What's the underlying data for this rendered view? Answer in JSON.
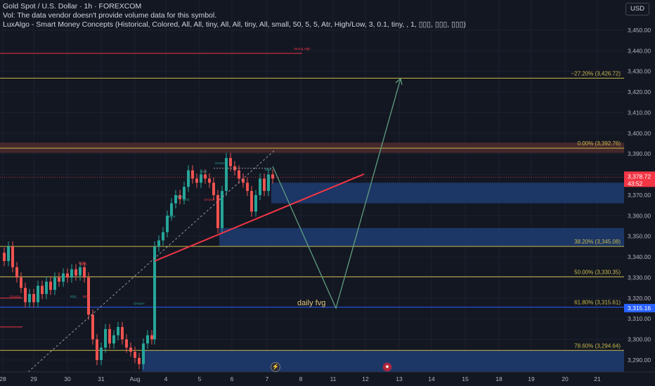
{
  "header": {
    "symbol_line": "Gold Spot / U.S. Dollar · 1h · FOREXCOM",
    "vol_line": "Vol: The data vendor doesn't provide volume data for this symbol.",
    "indicator_line": "LuxAlgo - Smart Money Concepts (Historical, Colored, All, All, tiny, All, All, tiny, All, small, 50, 5, 5, Atr, High/Low, 3, 0.1, tiny, , 1, ▯▯▯, ▯▯▯, ▯▯▯)"
  },
  "currency_button": "USD",
  "price_axis": {
    "ticks": [
      "3,450.00",
      "3,440.00",
      "3,430.00",
      "3,420.00",
      "3,410.00",
      "3,400.00",
      "3,390.00",
      "3,380.00",
      "3,370.00",
      "3,360.00",
      "3,350.00",
      "3,340.00",
      "3,330.00",
      "3,320.00",
      "3,310.00",
      "3,300.00",
      "3,290.00"
    ],
    "current_price": "3,378.72",
    "countdown": "43:52",
    "current_price_color": "#f23645",
    "marked_price": "3,315.16",
    "marked_price_color": "#2962ff"
  },
  "time_axis": {
    "labels": [
      "28",
      "29",
      "30",
      "31",
      "Aug",
      "4",
      "5",
      "6",
      "7",
      "8",
      "11",
      "12",
      "13",
      "14",
      "15",
      "18",
      "19",
      "20",
      "21"
    ]
  },
  "fib_levels": [
    {
      "label": "−27.20% (3,426.72)"
    },
    {
      "label": "0.00% (3,392.76)"
    },
    {
      "label": "38.20% (3,345.08)"
    },
    {
      "label": "50.00% (3,330.35)"
    },
    {
      "label": "61.80% (3,315.61)"
    },
    {
      "label": "78.60% (3,294.64)"
    }
  ],
  "annotations": {
    "daily_fvg": "daily fvg",
    "strong_high": "Strong High"
  },
  "smc_labels": [
    "CHoCH",
    "BOS",
    "EQH",
    "CHoCH",
    "EQL",
    "BOS",
    "BOS",
    "CHoCH",
    "BOS",
    "BOS",
    "CHoCH",
    "BOS",
    "BOS"
  ],
  "colors": {
    "background": "#131722",
    "fib_line": "#c9b94a",
    "trendline": "#f23645",
    "projection": "#5f9e7f",
    "fvg_zone": "#1e3a6e",
    "supply_zone": "#4a2a2e",
    "candle_up": "#26a69a",
    "candle_down": "#ef5350"
  }
}
